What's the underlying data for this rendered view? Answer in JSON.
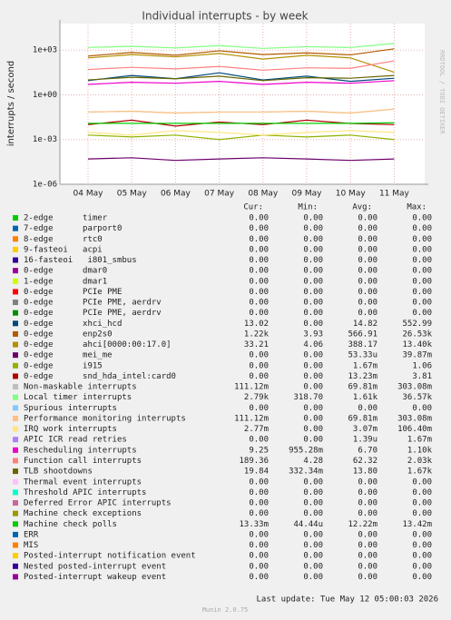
{
  "chart_data": {
    "type": "line",
    "title": "Individual interrupts - by week",
    "y_label": "interrupts / second",
    "side_text": "RRDTOOL / TOBI OETIKER",
    "log_scale": true,
    "grid": true,
    "categories": [
      "04 May",
      "05 May",
      "06 May",
      "07 May",
      "08 May",
      "09 May",
      "10 May",
      "11 May"
    ],
    "ylim": [
      1e-06,
      60000
    ],
    "yticks": [
      {
        "value": 1e-06,
        "label": "1e-06"
      },
      {
        "value": 0.001,
        "label": "1e-03"
      },
      {
        "value": 1,
        "label": "1e+00"
      },
      {
        "value": 1000,
        "label": "1e+03"
      }
    ],
    "legend_columns": [
      "Cur:",
      "Min:",
      "Avg:",
      "Max:"
    ],
    "series": [
      {
        "name": "2-edge      timer",
        "color": "#00cc00",
        "stats": [
          "0.00",
          "0.00",
          "0.00",
          "0.00"
        ]
      },
      {
        "name": "7-edge      parport0",
        "color": "#0066b3",
        "stats": [
          "0.00",
          "0.00",
          "0.00",
          "0.00"
        ]
      },
      {
        "name": "8-edge      rtc0",
        "color": "#ff8000",
        "stats": [
          "0.00",
          "0.00",
          "0.00",
          "0.00"
        ]
      },
      {
        "name": "9-fasteoi   acpi",
        "color": "#ffcc00",
        "stats": [
          "0.00",
          "0.00",
          "0.00",
          "0.00"
        ]
      },
      {
        "name": "16-fasteoi   i801_smbus",
        "color": "#330099",
        "stats": [
          "0.00",
          "0.00",
          "0.00",
          "0.00"
        ]
      },
      {
        "name": "0-edge      dmar0",
        "color": "#990099",
        "stats": [
          "0.00",
          "0.00",
          "0.00",
          "0.00"
        ]
      },
      {
        "name": "1-edge      dmar1",
        "color": "#ccff00",
        "stats": [
          "0.00",
          "0.00",
          "0.00",
          "0.00"
        ]
      },
      {
        "name": "0-edge      PCIe PME",
        "color": "#ff0000",
        "stats": [
          "0.00",
          "0.00",
          "0.00",
          "0.00"
        ]
      },
      {
        "name": "0-edge      PCIe PME, aerdrv",
        "color": "#808080",
        "stats": [
          "0.00",
          "0.00",
          "0.00",
          "0.00"
        ]
      },
      {
        "name": "0-edge      PCIe PME, aerdrv",
        "color": "#008f00",
        "stats": [
          "0.00",
          "0.00",
          "0.00",
          "0.00"
        ]
      },
      {
        "name": "0-edge      xhci_hcd",
        "color": "#00487d",
        "stats": [
          "13.02",
          "0.00",
          "14.82",
          "552.99"
        ],
        "values": [
          9,
          20,
          12,
          30,
          10,
          18,
          8,
          13
        ]
      },
      {
        "name": "0-edge      enp2s0",
        "color": "#b35a00",
        "stats": [
          "1.22k",
          "3.93",
          "566.91",
          "26.53k"
        ],
        "values": [
          400,
          700,
          450,
          900,
          500,
          650,
          480,
          1220
        ]
      },
      {
        "name": "0-edge      ahci[0000:00:17.0]",
        "color": "#b38f00",
        "stats": [
          "33.21",
          "4.06",
          "388.17",
          "13.40k"
        ],
        "values": [
          300,
          500,
          350,
          600,
          250,
          450,
          300,
          33
        ]
      },
      {
        "name": "0-edge      mei_me",
        "color": "#6b006b",
        "stats": [
          "0.00",
          "0.00",
          "53.33u",
          "39.87m"
        ],
        "values": [
          5e-05,
          6e-05,
          4e-05,
          5e-05,
          6e-05,
          5e-05,
          4e-05,
          5e-05
        ]
      },
      {
        "name": "0-edge      i915",
        "color": "#8fb300",
        "stats": [
          "0.00",
          "0.00",
          "1.67m",
          "1.06"
        ],
        "values": [
          0.002,
          0.0015,
          0.002,
          0.001,
          0.002,
          0.0015,
          0.002,
          0.001
        ]
      },
      {
        "name": "0-edge      snd_hda_intel:card0",
        "color": "#b30000",
        "stats": [
          "0.00",
          "0.00",
          "13.23m",
          "3.81"
        ],
        "values": [
          0.01,
          0.02,
          0.008,
          0.015,
          0.01,
          0.02,
          0.012,
          0.01
        ]
      },
      {
        "name": "Non-maskable interrupts",
        "color": "#bebebe",
        "stats": [
          "111.12m",
          "0.00",
          "69.81m",
          "303.08m"
        ],
        "values": [
          0.07,
          0.08,
          0.06,
          0.07,
          0.07,
          0.08,
          0.06,
          0.11
        ]
      },
      {
        "name": "Local timer interrupts",
        "color": "#80ff80",
        "stats": [
          "2.79k",
          "318.70",
          "1.61k",
          "36.57k"
        ],
        "values": [
          1500,
          1800,
          1400,
          2000,
          1300,
          1700,
          1500,
          2790
        ]
      },
      {
        "name": "Spurious interrupts",
        "color": "#80c9ff",
        "stats": [
          "0.00",
          "0.00",
          "0.00",
          "0.00"
        ]
      },
      {
        "name": "Performance monitoring interrupts",
        "color": "#ffc080",
        "stats": [
          "111.12m",
          "0.00",
          "69.81m",
          "303.08m"
        ],
        "values": [
          0.07,
          0.08,
          0.06,
          0.07,
          0.07,
          0.08,
          0.06,
          0.11
        ]
      },
      {
        "name": "IRQ work interrupts",
        "color": "#ffe680",
        "stats": [
          "2.77m",
          "0.00",
          "3.07m",
          "106.40m"
        ],
        "values": [
          0.003,
          0.002,
          0.004,
          0.003,
          0.002,
          0.003,
          0.004,
          0.003
        ]
      },
      {
        "name": "APIC ICR read retries",
        "color": "#aa80ff",
        "stats": [
          "0.00",
          "0.00",
          "1.39u",
          "1.67m"
        ]
      },
      {
        "name": "Rescheduling interrupts",
        "color": "#ee00cc",
        "stats": [
          "9.25",
          "955.28m",
          "6.70",
          "1.10k"
        ],
        "values": [
          5,
          7,
          6,
          8,
          5,
          7,
          6,
          9
        ]
      },
      {
        "name": "Function call interrupts",
        "color": "#ff8080",
        "stats": [
          "189.36",
          "4.28",
          "62.32",
          "2.03k"
        ],
        "values": [
          50,
          70,
          55,
          80,
          45,
          65,
          60,
          189
        ]
      },
      {
        "name": "TLB shootdowns",
        "color": "#666600",
        "stats": [
          "19.84",
          "332.34m",
          "13.80",
          "1.67k"
        ],
        "values": [
          10,
          15,
          12,
          18,
          9,
          14,
          13,
          20
        ]
      },
      {
        "name": "Thermal event interrupts",
        "color": "#ffbfff",
        "stats": [
          "0.00",
          "0.00",
          "0.00",
          "0.00"
        ]
      },
      {
        "name": "Threshold APIC interrupts",
        "color": "#00ffcc",
        "stats": [
          "0.00",
          "0.00",
          "0.00",
          "0.00"
        ]
      },
      {
        "name": "Deferred Error APIC interrupts",
        "color": "#cc6699",
        "stats": [
          "0.00",
          "0.00",
          "0.00",
          "0.00"
        ]
      },
      {
        "name": "Machine check exceptions",
        "color": "#999900",
        "stats": [
          "0.00",
          "0.00",
          "0.00",
          "0.00"
        ]
      },
      {
        "name": "Machine check polls",
        "color": "#00cc00",
        "stats": [
          "13.33m",
          "44.44u",
          "12.22m",
          "13.42m"
        ],
        "values": [
          0.0122,
          0.0122,
          0.0122,
          0.0122,
          0.0122,
          0.0122,
          0.0122,
          0.0133
        ]
      },
      {
        "name": "ERR",
        "color": "#0066b3",
        "stats": [
          "0.00",
          "0.00",
          "0.00",
          "0.00"
        ]
      },
      {
        "name": "MIS",
        "color": "#ff8000",
        "stats": [
          "0.00",
          "0.00",
          "0.00",
          "0.00"
        ]
      },
      {
        "name": "Posted-interrupt notification event",
        "color": "#ffcc00",
        "stats": [
          "0.00",
          "0.00",
          "0.00",
          "0.00"
        ]
      },
      {
        "name": "Nested posted-interrupt event",
        "color": "#330099",
        "stats": [
          "0.00",
          "0.00",
          "0.00",
          "0.00"
        ]
      },
      {
        "name": "Posted-interrupt wakeup event",
        "color": "#990099",
        "stats": [
          "0.00",
          "0.00",
          "0.00",
          "0.00"
        ]
      }
    ],
    "last_update": "Last update: Tue May 12 05:00:03 2026",
    "footer": "Munin 2.0.75"
  }
}
